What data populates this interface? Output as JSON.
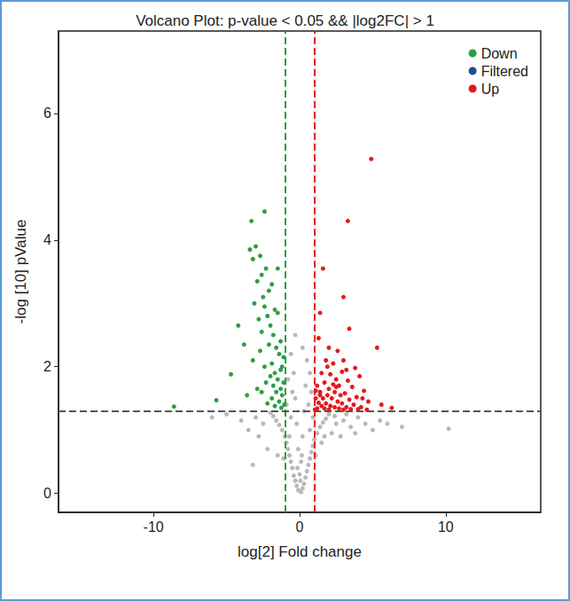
{
  "chart_data": {
    "type": "scatter",
    "title": "Volcano Plot: p-value < 0.05 && |log2FC| > 1",
    "x_label": "log[2] Fold change",
    "y_label": "-log [10] pValue",
    "xlim": [
      -16.5,
      16.5
    ],
    "xticks": [
      -10,
      0,
      10
    ],
    "ylim": [
      -0.3,
      7.3
    ],
    "yticks": [
      0,
      2,
      4,
      6
    ],
    "grid": false,
    "legend": "upper right",
    "marker": "circle",
    "reference_lines": [
      {
        "axis": "x",
        "value": -1,
        "color": "#2e9e44",
        "line_style": "dashed"
      },
      {
        "axis": "x",
        "value": 1,
        "color": "#e31a1c",
        "line_style": "dashed"
      },
      {
        "axis": "y",
        "value": 1.301,
        "color": "#555555",
        "line_style": "dashed"
      }
    ],
    "series": [
      {
        "color": "#b8b8b8",
        "values": [
          [
            0.1,
            0.02
          ],
          [
            -0.1,
            0.05
          ],
          [
            0.2,
            0.08
          ],
          [
            -0.2,
            0.12
          ],
          [
            0.3,
            0.15
          ],
          [
            -0.3,
            0.2
          ],
          [
            0.4,
            0.25
          ],
          [
            -0.4,
            0.28
          ],
          [
            0.5,
            0.35
          ],
          [
            -0.5,
            0.4
          ],
          [
            0.6,
            0.45
          ],
          [
            -0.6,
            0.5
          ],
          [
            0.7,
            0.55
          ],
          [
            -0.7,
            0.6
          ],
          [
            0.8,
            0.65
          ],
          [
            -0.8,
            0.7
          ],
          [
            0.9,
            0.75
          ],
          [
            -0.9,
            0.8
          ],
          [
            1.0,
            0.85
          ],
          [
            -1.0,
            0.9
          ],
          [
            1.2,
            0.95
          ],
          [
            -1.2,
            1.0
          ],
          [
            1.4,
            1.05
          ],
          [
            -1.4,
            1.08
          ],
          [
            1.6,
            1.12
          ],
          [
            -1.6,
            1.15
          ],
          [
            1.8,
            1.18
          ],
          [
            -1.8,
            1.22
          ],
          [
            2.0,
            1.25
          ],
          [
            -2.0,
            1.27
          ],
          [
            0.0,
            0.3
          ],
          [
            0.1,
            0.5
          ],
          [
            -0.1,
            0.7
          ],
          [
            0.2,
            0.9
          ],
          [
            -0.2,
            1.1
          ],
          [
            0.3,
            1.3
          ],
          [
            -0.3,
            1.5
          ],
          [
            0.4,
            1.7
          ],
          [
            -0.4,
            1.9
          ],
          [
            0.5,
            2.1
          ],
          [
            -0.5,
            1.6
          ],
          [
            0.6,
            1.4
          ],
          [
            -0.6,
            1.2
          ],
          [
            0.7,
            1.0
          ],
          [
            -0.7,
            0.9
          ],
          [
            0.8,
            1.6
          ],
          [
            -0.8,
            1.8
          ],
          [
            0.9,
            1.2
          ],
          [
            -0.9,
            1.4
          ],
          [
            0.15,
            0.6
          ],
          [
            -0.15,
            0.4
          ],
          [
            0.05,
            0.2
          ],
          [
            2.5,
            1.1
          ],
          [
            3.0,
            1.15
          ],
          [
            3.5,
            1.05
          ],
          [
            4.0,
            1.2
          ],
          [
            4.5,
            1.1
          ],
          [
            5.0,
            1.0
          ],
          [
            5.5,
            1.15
          ],
          [
            6.0,
            1.1
          ],
          [
            7.0,
            1.05
          ],
          [
            10.2,
            1.02
          ],
          [
            2.2,
            0.95
          ],
          [
            2.8,
            0.9
          ],
          [
            3.2,
            1.25
          ],
          [
            3.8,
            0.95
          ],
          [
            1.5,
            0.8
          ],
          [
            1.7,
            0.9
          ],
          [
            2.4,
            1.22
          ],
          [
            -2.5,
            1.1
          ],
          [
            -3.0,
            1.2
          ],
          [
            -3.5,
            1.0
          ],
          [
            -4.0,
            1.15
          ],
          [
            -3.2,
            0.45
          ],
          [
            -5.0,
            1.25
          ],
          [
            -6.0,
            1.2
          ],
          [
            -2.2,
            0.7
          ],
          [
            -1.5,
            0.6
          ],
          [
            -2.8,
            0.9
          ],
          [
            -1.1,
            0.55
          ],
          [
            1.1,
            0.6
          ],
          [
            -0.6,
            2.2
          ],
          [
            0.7,
            1.9
          ],
          [
            -0.3,
            2.5
          ],
          [
            0.2,
            2.3
          ]
        ]
      },
      {
        "name": "Down",
        "color": "#2e9e44",
        "values": [
          [
            -8.6,
            1.37
          ],
          [
            -5.7,
            1.47
          ],
          [
            -4.2,
            2.65
          ],
          [
            -3.8,
            2.35
          ],
          [
            -4.7,
            1.88
          ],
          [
            -3.3,
            4.3
          ],
          [
            -2.4,
            4.45
          ],
          [
            -3.4,
            3.85
          ],
          [
            -3.0,
            3.9
          ],
          [
            -2.7,
            3.75
          ],
          [
            -2.6,
            3.45
          ],
          [
            -3.2,
            3.7
          ],
          [
            -2.3,
            3.55
          ],
          [
            -2.9,
            3.35
          ],
          [
            -2.1,
            3.2
          ],
          [
            -2.5,
            3.1
          ],
          [
            -1.9,
            3.3
          ],
          [
            -3.1,
            3.0
          ],
          [
            -2.4,
            2.95
          ],
          [
            -1.7,
            2.9
          ],
          [
            -2.2,
            2.8
          ],
          [
            -2.8,
            2.75
          ],
          [
            -1.5,
            2.85
          ],
          [
            -2.0,
            2.65
          ],
          [
            -1.8,
            2.5
          ],
          [
            -2.6,
            2.55
          ],
          [
            -1.3,
            2.4
          ],
          [
            -1.6,
            2.3
          ],
          [
            -2.1,
            2.35
          ],
          [
            -1.4,
            2.2
          ],
          [
            -1.9,
            2.05
          ],
          [
            -2.4,
            2.0
          ],
          [
            -1.2,
            2.0
          ],
          [
            -1.7,
            1.9
          ],
          [
            -2.0,
            1.85
          ],
          [
            -1.5,
            1.8
          ],
          [
            -2.3,
            1.75
          ],
          [
            -1.1,
            1.75
          ],
          [
            -1.8,
            1.7
          ],
          [
            -1.3,
            1.65
          ],
          [
            -1.6,
            1.6
          ],
          [
            -2.6,
            1.6
          ],
          [
            -1.2,
            1.55
          ],
          [
            -1.9,
            1.5
          ],
          [
            -1.4,
            1.45
          ],
          [
            -1.05,
            1.4
          ],
          [
            -1.7,
            1.38
          ],
          [
            -2.2,
            1.42
          ],
          [
            -1.25,
            1.35
          ],
          [
            -3.6,
            1.55
          ],
          [
            -2.9,
            1.65
          ],
          [
            -3.2,
            2.1
          ],
          [
            -2.7,
            2.25
          ],
          [
            -1.5,
            3.55
          ],
          [
            -1.3,
            1.95
          ],
          [
            -1.1,
            2.15
          ]
        ]
      },
      {
        "name": "Filtered",
        "color": "#1f4e9c",
        "values": []
      },
      {
        "name": "Up",
        "color": "#e31a1c",
        "values": [
          [
            4.9,
            5.28
          ],
          [
            3.3,
            4.3
          ],
          [
            1.6,
            3.55
          ],
          [
            3.0,
            3.1
          ],
          [
            5.3,
            2.3
          ],
          [
            1.4,
            2.85
          ],
          [
            3.4,
            2.6
          ],
          [
            1.3,
            2.45
          ],
          [
            2.0,
            2.3
          ],
          [
            2.6,
            2.25
          ],
          [
            1.8,
            2.1
          ],
          [
            2.3,
            2.05
          ],
          [
            3.0,
            2.1
          ],
          [
            3.8,
            1.98
          ],
          [
            2.9,
            1.92
          ],
          [
            1.5,
            1.9
          ],
          [
            2.1,
            1.88
          ],
          [
            4.1,
            1.85
          ],
          [
            2.5,
            1.8
          ],
          [
            3.3,
            1.78
          ],
          [
            1.7,
            1.75
          ],
          [
            1.2,
            1.7
          ],
          [
            2.7,
            1.7
          ],
          [
            3.6,
            1.68
          ],
          [
            2.0,
            1.65
          ],
          [
            4.4,
            1.62
          ],
          [
            1.4,
            1.6
          ],
          [
            2.4,
            1.6
          ],
          [
            3.1,
            1.58
          ],
          [
            1.9,
            1.55
          ],
          [
            2.8,
            1.55
          ],
          [
            3.9,
            1.52
          ],
          [
            1.1,
            1.5
          ],
          [
            1.6,
            1.5
          ],
          [
            2.2,
            1.5
          ],
          [
            3.4,
            1.48
          ],
          [
            4.7,
            1.45
          ],
          [
            2.6,
            1.45
          ],
          [
            1.3,
            1.43
          ],
          [
            1.8,
            1.42
          ],
          [
            2.9,
            1.42
          ],
          [
            3.7,
            1.4
          ],
          [
            5.6,
            1.4
          ],
          [
            1.5,
            1.38
          ],
          [
            2.1,
            1.38
          ],
          [
            2.4,
            1.36
          ],
          [
            3.2,
            1.36
          ],
          [
            4.2,
            1.36
          ],
          [
            1.2,
            1.34
          ],
          [
            1.7,
            1.34
          ],
          [
            2.7,
            1.34
          ],
          [
            3.5,
            1.33
          ],
          [
            4.0,
            1.33
          ],
          [
            6.3,
            1.35
          ],
          [
            1.05,
            1.32
          ],
          [
            2.0,
            1.32
          ],
          [
            3.0,
            1.32
          ],
          [
            4.6,
            1.32
          ],
          [
            1.4,
            1.55
          ],
          [
            2.5,
            1.68
          ],
          [
            3.2,
            1.95
          ],
          [
            1.9,
            2.0
          ],
          [
            2.3,
            1.72
          ],
          [
            1.1,
            1.62
          ],
          [
            4.3,
            1.5
          ]
        ]
      }
    ]
  }
}
